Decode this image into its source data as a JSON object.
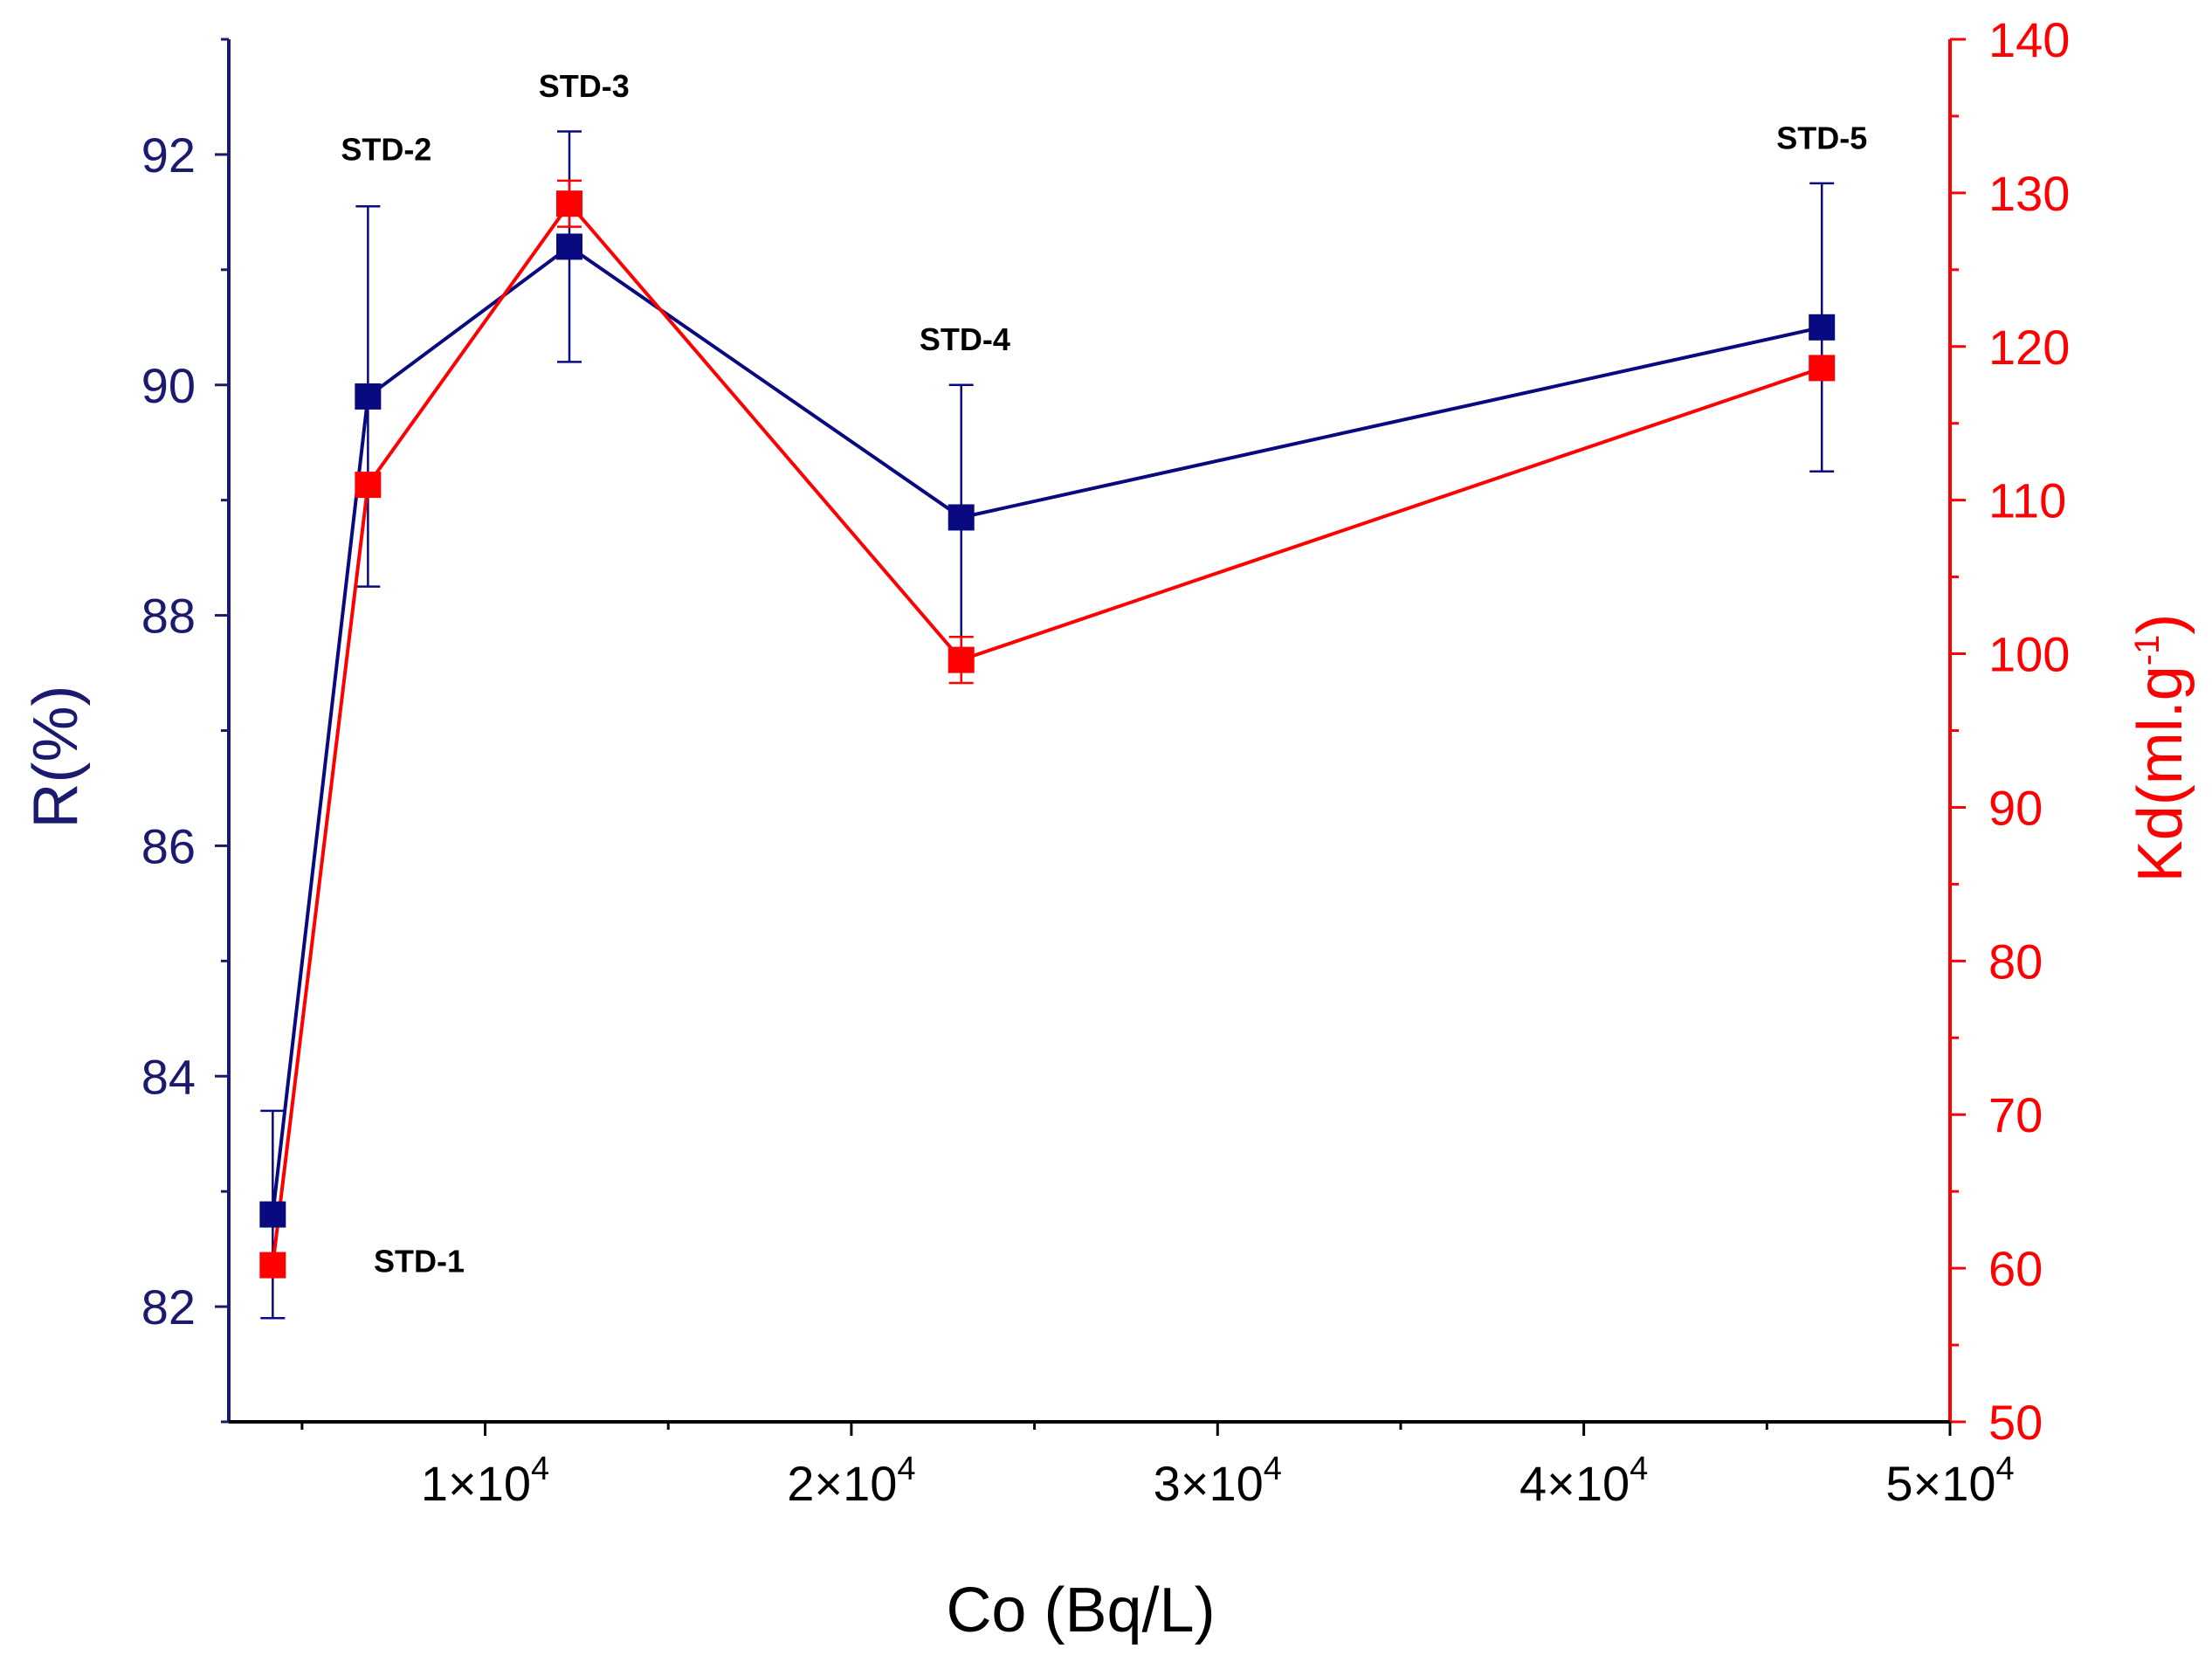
{
  "chart_data": {
    "type": "line",
    "title": "",
    "xlabel": "Co (Bq/L)",
    "ylabel_left": "R(%)",
    "ylabel_right_base": "Kd(ml.g",
    "ylabel_right_sup": "-1",
    "ylabel_right_close": ")",
    "xlim": [
      3000,
      50000
    ],
    "ylim_left": [
      81,
      93
    ],
    "ylim_right": [
      50,
      140
    ],
    "x_ticks": [
      10000,
      20000,
      30000,
      40000,
      50000
    ],
    "x_tick_labels": [
      {
        "mantissa": "1×10",
        "exp": "4"
      },
      {
        "mantissa": "2×10",
        "exp": "4"
      },
      {
        "mantissa": "3×10",
        "exp": "4"
      },
      {
        "mantissa": "4×10",
        "exp": "4"
      },
      {
        "mantissa": "5×10",
        "exp": "4"
      }
    ],
    "y_left_ticks": [
      "82",
      "84",
      "86",
      "88",
      "90",
      "92"
    ],
    "y_right_ticks": [
      "50",
      "60",
      "70",
      "80",
      "90",
      "100",
      "110",
      "120",
      "130",
      "140"
    ],
    "grid": false,
    "colors": {
      "axis_left": "#1a1a6e",
      "axis_right": "#ff0000",
      "axis_bottom": "#000000"
    },
    "series": [
      {
        "name": "R(%)",
        "axis": "left",
        "color": "#0a0a80",
        "x": [
          4200,
          6800,
          12300,
          23000,
          46500
        ],
        "y": [
          82.8,
          89.9,
          91.2,
          88.85,
          90.5
        ],
        "err": [
          0.9,
          1.65,
          1.0,
          1.15,
          1.25
        ]
      },
      {
        "name": "Kd(ml.g-1)",
        "axis": "right",
        "color": "#ff0000",
        "x": [
          4200,
          6800,
          12300,
          23000,
          46500
        ],
        "y": [
          60.2,
          111.0,
          129.3,
          99.6,
          118.6
        ],
        "err": [
          0,
          0,
          1.5,
          1.5,
          0
        ]
      }
    ],
    "annotations": [
      {
        "text": "STD-1",
        "x": 8200,
        "y_left": 82.3
      },
      {
        "text": "STD-2",
        "x": 7300,
        "y_left": 91.95
      },
      {
        "text": "STD-3",
        "x": 12700,
        "y_left": 92.5
      },
      {
        "text": "STD-4",
        "x": 23100,
        "y_left": 90.3
      },
      {
        "text": "STD-5",
        "x": 46500,
        "y_left": 92.05
      }
    ]
  }
}
